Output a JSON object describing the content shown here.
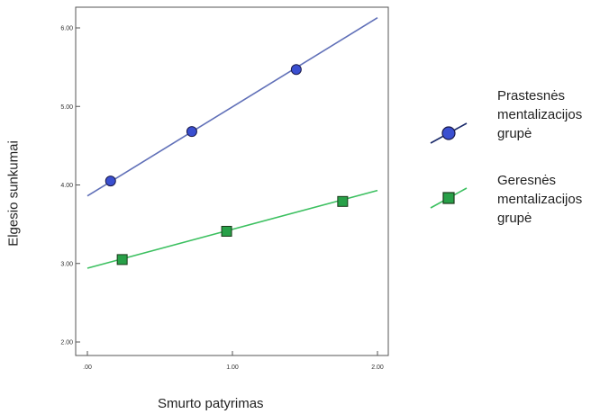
{
  "chart_data": {
    "type": "line",
    "xlabel": "Smurto patyrimas",
    "ylabel": "Elgesio sunkumai",
    "xlim": [
      0,
      2
    ],
    "ylim": [
      1.8,
      6.2
    ],
    "x_ticks": [
      ".00",
      "1.00",
      "2.00"
    ],
    "y_ticks": [
      "2.00",
      "3.00",
      "4.00",
      "5.00",
      "6.00"
    ],
    "grid": false,
    "legend_position": "right",
    "series": [
      {
        "name": "Prastesnės mentalizacijos grupė",
        "name_lines": [
          "Prastesnės",
          "mentalizacijos",
          "grupė"
        ],
        "marker": "circle",
        "line_color": "#6070b8",
        "marker_color": "#3a4fd0",
        "fit_line": [
          [
            0,
            3.86
          ],
          [
            2,
            6.13
          ]
        ],
        "points": [
          [
            0.16,
            4.05
          ],
          [
            0.72,
            4.68
          ],
          [
            1.44,
            5.47
          ]
        ]
      },
      {
        "name": "Geresnės mentalizacijos grupė",
        "name_lines": [
          "Geresnės",
          "mentalizacijos",
          "grupė"
        ],
        "marker": "square",
        "line_color": "#3cc060",
        "marker_color": "#28a048",
        "fit_line": [
          [
            0,
            2.94
          ],
          [
            2,
            3.93
          ]
        ],
        "points": [
          [
            0.24,
            3.05
          ],
          [
            0.96,
            3.41
          ],
          [
            1.76,
            3.79
          ]
        ]
      }
    ]
  }
}
